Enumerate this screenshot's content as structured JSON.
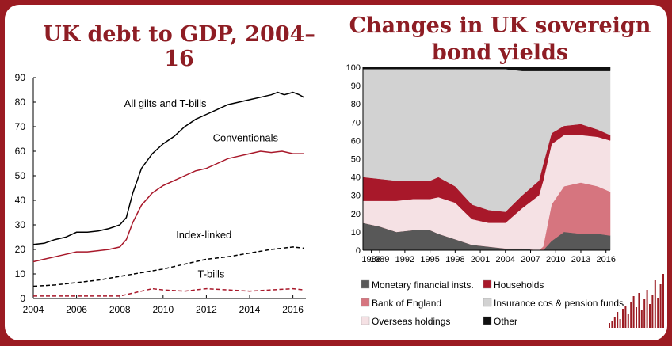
{
  "colors": {
    "brand": "#9b1b22",
    "title": "#8e1d24",
    "mfi": "#585858",
    "boe": "#d6757f",
    "overseas": "#f5e1e4",
    "households": "#a8182a",
    "insurance": "#d2d2d2",
    "other": "#111111"
  },
  "left_title": "UK debt to GDP, 2004–16",
  "right_title": "Changes in UK sovereign bond yields",
  "chart_data": [
    {
      "type": "line",
      "title": "UK debt to GDP, 2004–16",
      "xlabel": "",
      "ylabel": "",
      "xlim": [
        2004,
        2016.6
      ],
      "ylim": [
        0,
        90
      ],
      "x_ticks": [
        "2004",
        "2006",
        "2008",
        "2010",
        "2012",
        "2014",
        "2016"
      ],
      "y_ticks": [
        "0",
        "10",
        "20",
        "30",
        "40",
        "50",
        "60",
        "70",
        "80",
        "90"
      ],
      "grid": false,
      "series": [
        {
          "name": "All gilts and T-bills",
          "style": "solid",
          "color": "#000000",
          "x": [
            2004,
            2004.5,
            2005,
            2005.5,
            2006,
            2006.5,
            2007,
            2007.5,
            2008,
            2008.3,
            2008.6,
            2009,
            2009.5,
            2010,
            2010.5,
            2011,
            2011.5,
            2012,
            2012.5,
            2013,
            2013.5,
            2014,
            2014.5,
            2015,
            2015.3,
            2015.6,
            2016,
            2016.3,
            2016.5
          ],
          "y": [
            22,
            22.5,
            24,
            25,
            27,
            27,
            27.5,
            28.5,
            30,
            33,
            43,
            53,
            59,
            63,
            66,
            70,
            73,
            75,
            77,
            79,
            80,
            81,
            82,
            83,
            84,
            83,
            84,
            83,
            82
          ]
        },
        {
          "name": "Conventionals",
          "style": "solid",
          "color": "#a8182a",
          "x": [
            2004,
            2004.5,
            2005,
            2005.5,
            2006,
            2006.5,
            2007,
            2007.5,
            2008,
            2008.3,
            2008.6,
            2009,
            2009.5,
            2010,
            2010.5,
            2011,
            2011.5,
            2012,
            2012.5,
            2013,
            2013.5,
            2014,
            2014.5,
            2015,
            2015.5,
            2016,
            2016.3,
            2016.5
          ],
          "y": [
            15,
            16,
            17,
            18,
            19,
            19,
            19.5,
            20,
            21,
            24,
            31,
            38,
            43,
            46,
            48,
            50,
            52,
            53,
            55,
            57,
            58,
            59,
            60,
            59.5,
            60,
            59,
            59,
            59
          ]
        },
        {
          "name": "Index-linked",
          "style": "dashed",
          "color": "#000000",
          "x": [
            2004,
            2005,
            2006,
            2007,
            2008,
            2009,
            2010,
            2011,
            2012,
            2013,
            2014,
            2015,
            2016,
            2016.5
          ],
          "y": [
            5,
            5.5,
            6.5,
            7.5,
            9,
            10.5,
            12,
            14,
            16,
            17,
            18.5,
            20,
            21,
            20.5
          ]
        },
        {
          "name": "T-bills",
          "style": "dashed",
          "color": "#a8182a",
          "x": [
            2004,
            2005,
            2006,
            2007,
            2008,
            2009,
            2009.5,
            2010,
            2011,
            2012,
            2013,
            2014,
            2015,
            2016,
            2016.5
          ],
          "y": [
            1,
            1,
            1,
            1,
            1,
            3,
            4,
            3.5,
            3,
            4,
            3.5,
            3,
            3.5,
            4,
            3.5
          ]
        }
      ]
    },
    {
      "type": "area",
      "title": "Changes in UK sovereign bond yields",
      "stacked": true,
      "xlim": [
        1987,
        2016.5
      ],
      "ylim": [
        0,
        100
      ],
      "x_ticks": [
        "1988",
        "1989",
        "1992",
        "1995",
        "1998",
        "2001",
        "2004",
        "2007",
        "2010",
        "2013",
        "2016"
      ],
      "y_ticks": [
        "0",
        "10",
        "20",
        "30",
        "40",
        "50",
        "60",
        "70",
        "80",
        "90",
        "100"
      ],
      "legend_position": "bottom",
      "x": [
        1987,
        1989,
        1991,
        1993,
        1995,
        1996,
        1998,
        2000,
        2002,
        2004,
        2006,
        2008,
        2008.5,
        2009.5,
        2011,
        2013,
        2015,
        2016.5
      ],
      "series": [
        {
          "name": "Monetary financial insts.",
          "color": "#585858",
          "values": [
            15,
            13,
            10,
            11,
            11,
            9,
            6,
            3,
            2,
            1,
            1,
            0,
            0,
            5,
            10,
            9,
            9,
            8
          ]
        },
        {
          "name": "Bank of England",
          "color": "#d6757f",
          "values": [
            0,
            0,
            0,
            0,
            0,
            0,
            0,
            0,
            0,
            0,
            0,
            0,
            2,
            20,
            25,
            28,
            26,
            24
          ]
        },
        {
          "name": "Overseas holdings",
          "color": "#f5e1e4",
          "values": [
            12,
            14,
            17,
            17,
            17,
            20,
            20,
            14,
            13,
            14,
            22,
            30,
            36,
            33,
            28,
            26,
            27,
            28
          ]
        },
        {
          "name": "Households",
          "color": "#a8182a",
          "values": [
            13,
            12,
            11,
            10,
            10,
            11,
            9,
            8,
            7,
            6,
            7,
            8,
            9,
            6,
            5,
            6,
            4,
            3
          ]
        },
        {
          "name": "Insurance cos & pension funds",
          "color": "#d2d2d2",
          "values": [
            59,
            60,
            61,
            61,
            61,
            59,
            64,
            74,
            77,
            78,
            68,
            60,
            51,
            34,
            30,
            29,
            32,
            35
          ]
        },
        {
          "name": "Other",
          "color": "#111111",
          "values": [
            1,
            1,
            1,
            1,
            1,
            1,
            1,
            1,
            1,
            1,
            2,
            2,
            2,
            2,
            2,
            2,
            2,
            2
          ]
        }
      ]
    }
  ]
}
